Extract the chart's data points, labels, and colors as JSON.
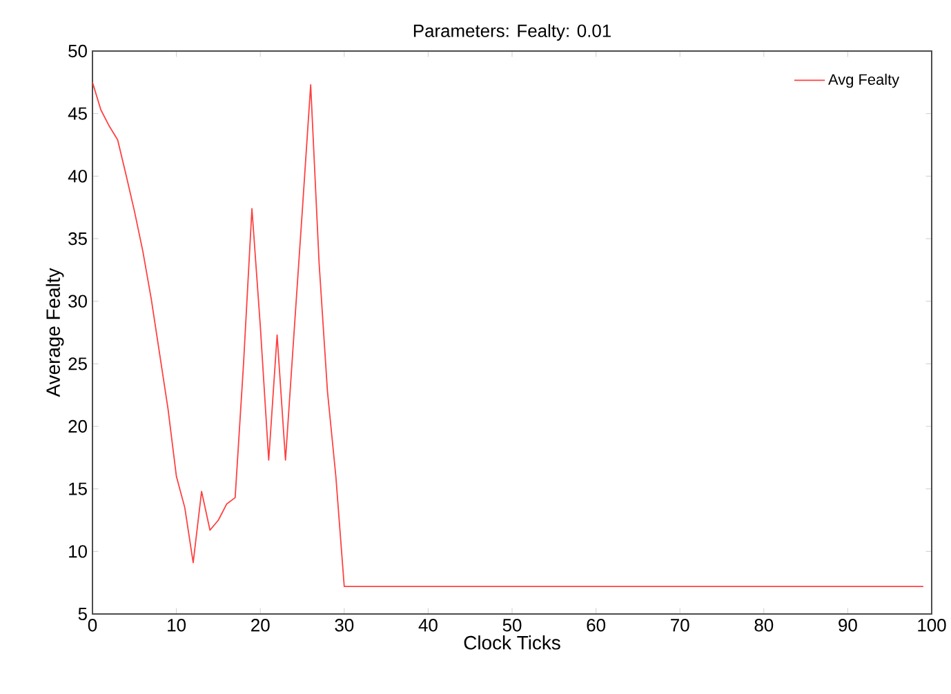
{
  "chart_data": {
    "type": "line",
    "title": "Parameters: Fealty: 0.01",
    "xlabel": "Clock Ticks",
    "ylabel": "Average Fealty",
    "xlim": [
      0,
      100
    ],
    "ylim": [
      5,
      50
    ],
    "xticks": [
      0,
      10,
      20,
      30,
      40,
      50,
      60,
      70,
      80,
      90,
      100
    ],
    "yticks": [
      5,
      10,
      15,
      20,
      25,
      30,
      35,
      40,
      45,
      50
    ],
    "legend": "top right",
    "grid": false,
    "series": [
      {
        "name": "Avg Fealty",
        "color": "#ff4040",
        "x": [
          0,
          1,
          2,
          3,
          4,
          5,
          6,
          7,
          8,
          9,
          10,
          11,
          12,
          13,
          14,
          15,
          16,
          17,
          18,
          19,
          20,
          21,
          22,
          23,
          24,
          25,
          26,
          27,
          28,
          29,
          30,
          99
        ],
        "values": [
          47.5,
          45.3,
          44.0,
          42.9,
          40.1,
          37.2,
          34.0,
          30.2,
          25.8,
          21.4,
          16.0,
          13.5,
          9.1,
          14.8,
          11.7,
          12.5,
          13.8,
          14.3,
          25.0,
          37.4,
          28.0,
          17.3,
          27.3,
          17.3,
          27.3,
          37.2,
          47.3,
          33.1,
          22.8,
          16.0,
          7.2,
          7.2
        ]
      }
    ]
  }
}
